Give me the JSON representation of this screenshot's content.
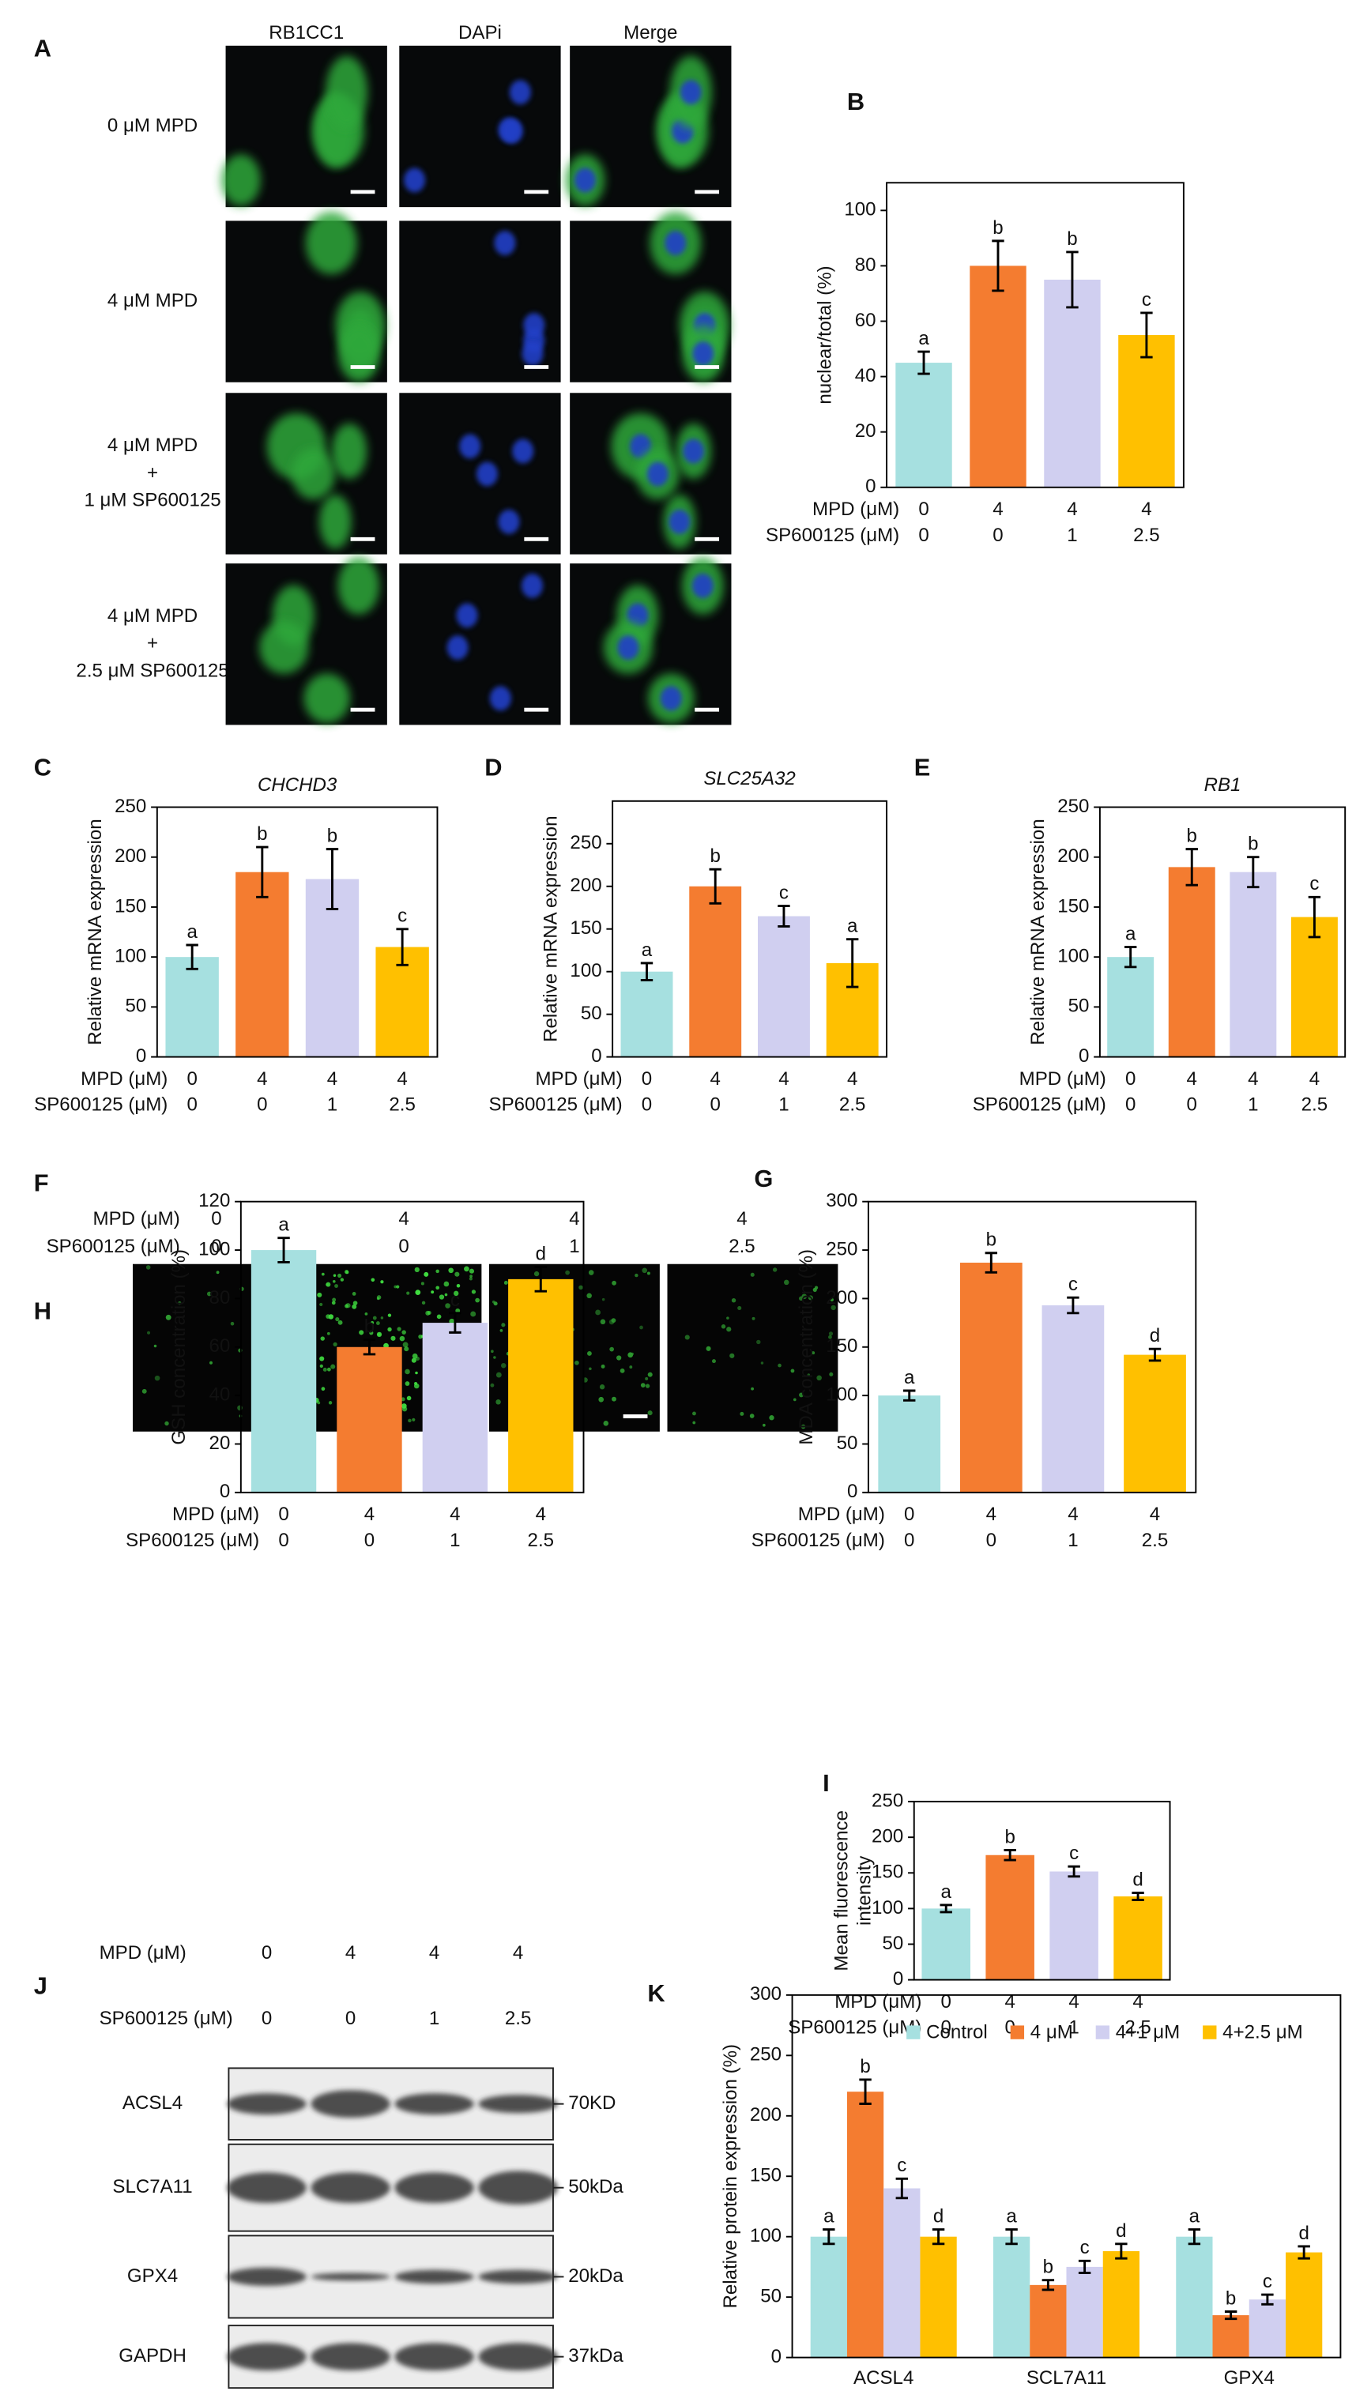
{
  "panel_labels": [
    "A",
    "B",
    "C",
    "D",
    "E",
    "F",
    "G",
    "H",
    "I",
    "J",
    "K"
  ],
  "panel_A": {
    "columns": [
      "RB1CC1",
      "DAPi",
      "Merge"
    ],
    "rows": [
      [
        "0 μM MPD"
      ],
      [
        "4 μM MPD"
      ],
      [
        "4 μM MPD",
        "+",
        "1 μM SP600125"
      ],
      [
        "4 μM MPD",
        "+",
        "2.5 μM SP600125"
      ]
    ]
  },
  "panel_H": {
    "rows": [
      {
        "name": "MPD (μM)",
        "labels": [
          "0",
          "4",
          "4",
          "4"
        ]
      },
      {
        "name": "SP600125 (μM)",
        "labels": [
          "0",
          "0",
          "1",
          "2.5"
        ]
      }
    ]
  },
  "panel_J": {
    "rows": [
      {
        "name": "MPD (μM)",
        "labels": [
          "0",
          "4",
          "4",
          "4"
        ]
      },
      {
        "name": "SP600125 (μM)",
        "labels": [
          "0",
          "0",
          "1",
          "2.5"
        ]
      }
    ],
    "proteins": [
      "ACSL4",
      "SLC7A11",
      "GPX4",
      "GAPDH"
    ],
    "sizes": [
      "70KD",
      "50kDa",
      "20kDa",
      "37kDa"
    ]
  },
  "chart_data": [
    {
      "type": "bar",
      "ylabel": "nuclear/total (%)",
      "category_rows": [
        {
          "name": "MPD  (μM)",
          "labels": [
            "0",
            "4",
            "4",
            "4"
          ]
        },
        {
          "name": "SP600125 (μM)",
          "labels": [
            "0",
            "0",
            "1",
            "2.5"
          ]
        }
      ],
      "values": [
        45,
        80,
        75,
        55
      ],
      "errors": [
        4,
        9,
        10,
        8
      ],
      "annotations": [
        "a",
        "b",
        "b",
        "c"
      ],
      "colors": [
        "#a6e0e0",
        "#f47c30",
        "#d0cff0",
        "#ffc000"
      ],
      "ylim": [
        0,
        110
      ],
      "yticks": [
        0,
        20,
        40,
        60,
        80,
        100
      ]
    },
    {
      "type": "bar",
      "title": "CHCHD3",
      "ylabel": "Relative mRNA expression",
      "category_rows": [
        {
          "name": "MPD (μM)",
          "labels": [
            "0",
            "4",
            "4",
            "4"
          ]
        },
        {
          "name": "SP600125 (μM)",
          "labels": [
            "0",
            "0",
            "1",
            "2.5"
          ]
        }
      ],
      "values": [
        100,
        185,
        178,
        110
      ],
      "errors": [
        12,
        25,
        30,
        18
      ],
      "annotations": [
        "a",
        "b",
        "b",
        "c"
      ],
      "colors": [
        "#a6e0e0",
        "#f47c30",
        "#d0cff0",
        "#ffc000"
      ],
      "ylim": [
        0,
        250
      ],
      "yticks": [
        0,
        50,
        100,
        150,
        200,
        250
      ]
    },
    {
      "type": "bar",
      "title": "SLC25A32",
      "ylabel": "Relative mRNA expression",
      "category_rows": [
        {
          "name": "MPD (μM)",
          "labels": [
            "0",
            "4",
            "4",
            "4"
          ]
        },
        {
          "name": "SP600125 (μM)",
          "labels": [
            "0",
            "0",
            "1",
            "2.5"
          ]
        }
      ],
      "values": [
        100,
        200,
        165,
        110
      ],
      "errors": [
        10,
        20,
        12,
        28
      ],
      "annotations": [
        "a",
        "b",
        "c",
        "a"
      ],
      "colors": [
        "#a6e0e0",
        "#f47c30",
        "#d0cff0",
        "#ffc000"
      ],
      "ylim": [
        0,
        300
      ],
      "yticks": [
        0,
        50,
        100,
        150,
        200,
        250
      ]
    },
    {
      "type": "bar",
      "title": "RB1",
      "ylabel": "Relative mRNA expression",
      "category_rows": [
        {
          "name": "MPD (μM)",
          "labels": [
            "0",
            "4",
            "4",
            "4"
          ]
        },
        {
          "name": "SP600125 (μM)",
          "labels": [
            "0",
            "0",
            "1",
            "2.5"
          ]
        }
      ],
      "values": [
        100,
        190,
        185,
        140
      ],
      "errors": [
        10,
        18,
        15,
        20
      ],
      "annotations": [
        "a",
        "b",
        "b",
        "c"
      ],
      "colors": [
        "#a6e0e0",
        "#f47c30",
        "#d0cff0",
        "#ffc000"
      ],
      "ylim": [
        0,
        250
      ],
      "yticks": [
        0,
        50,
        100,
        150,
        200,
        250
      ]
    },
    {
      "type": "bar",
      "ylabel": "GSH concentration (%)",
      "category_rows": [
        {
          "name": "MPD (μM)",
          "labels": [
            "0",
            "4",
            "4",
            "4"
          ]
        },
        {
          "name": "SP600125 (μM)",
          "labels": [
            "0",
            "0",
            "1",
            "2.5"
          ]
        }
      ],
      "values": [
        100,
        60,
        70,
        88
      ],
      "errors": [
        5,
        3,
        4,
        5
      ],
      "annotations": [
        "a",
        "b",
        "c",
        "d"
      ],
      "colors": [
        "#a6e0e0",
        "#f47c30",
        "#d0cff0",
        "#ffc000"
      ],
      "ylim": [
        0,
        120
      ],
      "yticks": [
        0,
        20,
        40,
        60,
        80,
        100,
        120
      ]
    },
    {
      "type": "bar",
      "ylabel": "MDA concentration (%)",
      "category_rows": [
        {
          "name": "MPD (μM)",
          "labels": [
            "0",
            "4",
            "4",
            "4"
          ]
        },
        {
          "name": "SP600125 (μM)",
          "labels": [
            "0",
            "0",
            "1",
            "2.5"
          ]
        }
      ],
      "values": [
        100,
        237,
        193,
        142
      ],
      "errors": [
        5,
        10,
        8,
        6
      ],
      "annotations": [
        "a",
        "b",
        "c",
        "d"
      ],
      "colors": [
        "#a6e0e0",
        "#f47c30",
        "#d0cff0",
        "#ffc000"
      ],
      "ylim": [
        0,
        300
      ],
      "yticks": [
        0,
        50,
        100,
        150,
        200,
        250,
        300
      ]
    },
    {
      "type": "bar",
      "ylabel": [
        "Mean fluorescence",
        "intensity"
      ],
      "category_rows": [
        {
          "name": "MPD (μM)",
          "labels": [
            "0",
            "4",
            "4",
            "4"
          ]
        },
        {
          "name": "SP600125 (μM)",
          "labels": [
            "0",
            "0",
            "1",
            "2.5"
          ]
        }
      ],
      "values": [
        100,
        175,
        152,
        117
      ],
      "errors": [
        5,
        7,
        7,
        5
      ],
      "annotations": [
        "a",
        "b",
        "c",
        "d"
      ],
      "colors": [
        "#a6e0e0",
        "#f47c30",
        "#d0cff0",
        "#ffc000"
      ],
      "ylim": [
        0,
        250
      ],
      "yticks": [
        0,
        50,
        100,
        150,
        200,
        250
      ]
    },
    {
      "type": "bar",
      "ylabel": "Relative protein expression (%)",
      "legend": "top",
      "categories": [
        "ACSL4",
        "SCL7A11",
        "GPX4"
      ],
      "series": [
        {
          "name": "Control",
          "color": "#a6e0e0",
          "values": [
            100,
            100,
            100
          ],
          "errors": [
            6,
            6,
            6
          ],
          "annotations": [
            "a",
            "a",
            "a"
          ]
        },
        {
          "name": "4 μM",
          "color": "#f47c30",
          "values": [
            220,
            60,
            35
          ],
          "errors": [
            10,
            4,
            3
          ],
          "annotations": [
            "b",
            "b",
            "b"
          ]
        },
        {
          "name": "4+1 μM",
          "color": "#d0cff0",
          "values": [
            140,
            75,
            48
          ],
          "errors": [
            8,
            5,
            4
          ],
          "annotations": [
            "c",
            "c",
            "c"
          ]
        },
        {
          "name": "4+2.5 μM",
          "color": "#ffc000",
          "values": [
            100,
            88,
            87
          ],
          "errors": [
            6,
            6,
            5
          ],
          "annotations": [
            "d",
            "d",
            "d"
          ]
        }
      ],
      "ylim": [
        0,
        300
      ],
      "yticks": [
        0,
        50,
        100,
        150,
        200,
        250,
        300
      ]
    }
  ]
}
